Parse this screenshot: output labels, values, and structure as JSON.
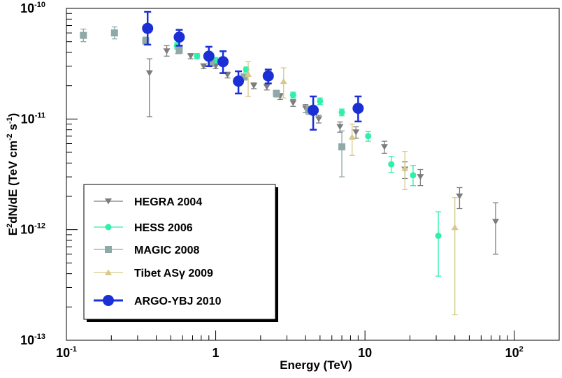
{
  "chart_data": {
    "type": "scatter",
    "title": "",
    "xlabel": "Energy (TeV)",
    "ylabel_parts": [
      "E",
      "2",
      "dN/dE (TeV cm",
      "-2",
      " s",
      "-1",
      ")"
    ],
    "x_scale": "log",
    "y_scale": "log",
    "xlim": [
      0.1,
      200
    ],
    "ylim": [
      1e-13,
      1e-10
    ],
    "grid": false,
    "legend_position": "bottom-left",
    "x_tick_labels": [
      {
        "value": 0.1,
        "base": "10",
        "exp": "-1"
      },
      {
        "value": 1,
        "base": "1",
        "exp": ""
      },
      {
        "value": 10,
        "base": "10",
        "exp": ""
      },
      {
        "value": 100,
        "base": "10",
        "exp": "2"
      }
    ],
    "y_tick_labels": [
      {
        "value": 1e-13,
        "base": "10",
        "exp": "-13"
      },
      {
        "value": 1e-12,
        "base": "10",
        "exp": "-12"
      },
      {
        "value": 1e-11,
        "base": "10",
        "exp": "-11"
      },
      {
        "value": 1e-10,
        "base": "10",
        "exp": "-10"
      }
    ],
    "series": [
      {
        "name": "HEGRA 2004",
        "marker": "triangle-down",
        "color": "#7d7d7d",
        "points": [
          {
            "x": 0.36,
            "y": 2.6e-11,
            "lo": 1.05e-11,
            "hi": 3.5e-11
          },
          {
            "x": 0.47,
            "y": 4.1e-11,
            "lo": 3.7e-11,
            "hi": 4.6e-11
          },
          {
            "x": 0.56,
            "y": 4.2e-11,
            "lo": 3.9e-11,
            "hi": 4.5e-11
          },
          {
            "x": 0.68,
            "y": 3.7e-11,
            "lo": 3.5e-11,
            "hi": 3.9e-11
          },
          {
            "x": 0.83,
            "y": 3e-11,
            "lo": 2.85e-11,
            "hi": 3.15e-11
          },
          {
            "x": 1.0,
            "y": 3e-11,
            "lo": 2.85e-11,
            "hi": 3.15e-11
          },
          {
            "x": 1.2,
            "y": 2.5e-11,
            "lo": 2.35e-11,
            "hi": 2.65e-11
          },
          {
            "x": 1.47,
            "y": 2.3e-11,
            "lo": 2.15e-11,
            "hi": 2.45e-11
          },
          {
            "x": 1.8,
            "y": 2e-11,
            "lo": 1.88e-11,
            "hi": 2.12e-11
          },
          {
            "x": 2.2,
            "y": 1.95e-11,
            "lo": 1.83e-11,
            "hi": 2.07e-11
          },
          {
            "x": 2.7,
            "y": 1.6e-11,
            "lo": 1.5e-11,
            "hi": 1.7e-11
          },
          {
            "x": 3.3,
            "y": 1.4e-11,
            "lo": 1.3e-11,
            "hi": 1.5e-11
          },
          {
            "x": 4.0,
            "y": 1.25e-11,
            "lo": 1.15e-11,
            "hi": 1.35e-11
          },
          {
            "x": 4.9,
            "y": 1e-11,
            "lo": 9.2e-12,
            "hi": 1.08e-11
          },
          {
            "x": 6.8,
            "y": 8.5e-12,
            "lo": 7.6e-12,
            "hi": 9.4e-12
          },
          {
            "x": 8.7,
            "y": 7.6e-12,
            "lo": 6.7e-12,
            "hi": 8.5e-12
          },
          {
            "x": 13.5,
            "y": 5.6e-12,
            "lo": 4.9e-12,
            "hi": 6.3e-12
          },
          {
            "x": 18.5,
            "y": 3.5e-12,
            "lo": 2.9e-12,
            "hi": 4.1e-12
          },
          {
            "x": 23.5,
            "y": 3e-12,
            "lo": 2.5e-12,
            "hi": 3.5e-12
          },
          {
            "x": 43,
            "y": 2e-12,
            "lo": 1.55e-12,
            "hi": 2.4e-12
          },
          {
            "x": 75,
            "y": 1.18e-12,
            "lo": 6e-13,
            "hi": 1.75e-12
          }
        ]
      },
      {
        "name": "HESS 2006",
        "marker": "circle-small",
        "color": "#2ef0a8",
        "points": [
          {
            "x": 0.55,
            "y": 4.6e-11,
            "lo": 4.3e-11,
            "hi": 4.9e-11
          },
          {
            "x": 0.75,
            "y": 3.7e-11,
            "lo": 3.5e-11,
            "hi": 3.9e-11
          },
          {
            "x": 1.0,
            "y": 3.4e-11,
            "lo": 3.2e-11,
            "hi": 3.6e-11
          },
          {
            "x": 1.6,
            "y": 2.8e-11,
            "lo": 2.65e-11,
            "hi": 2.95e-11
          },
          {
            "x": 3.3,
            "y": 1.65e-11,
            "lo": 1.55e-11,
            "hi": 1.75e-11
          },
          {
            "x": 5.0,
            "y": 1.45e-11,
            "lo": 1.35e-11,
            "hi": 1.55e-11
          },
          {
            "x": 7.0,
            "y": 1.15e-11,
            "lo": 1.07e-11,
            "hi": 1.23e-11
          },
          {
            "x": 10.5,
            "y": 7e-12,
            "lo": 6.3e-12,
            "hi": 7.7e-12
          },
          {
            "x": 15.0,
            "y": 3.9e-12,
            "lo": 3.3e-12,
            "hi": 4.6e-12
          },
          {
            "x": 21,
            "y": 3.1e-12,
            "lo": 2.5e-12,
            "hi": 3.8e-12
          },
          {
            "x": 31,
            "y": 8.8e-13,
            "lo": 3.8e-13,
            "hi": 1.45e-12
          }
        ]
      },
      {
        "name": "MAGIC 2008",
        "marker": "square",
        "color": "#8fa8a8",
        "points": [
          {
            "x": 0.13,
            "y": 5.7e-11,
            "lo": 5e-11,
            "hi": 6.5e-11
          },
          {
            "x": 0.21,
            "y": 6e-11,
            "lo": 5.3e-11,
            "hi": 6.8e-11
          },
          {
            "x": 0.34,
            "y": 5.1e-11,
            "lo": 4.7e-11,
            "hi": 5.5e-11
          },
          {
            "x": 0.57,
            "y": 4.2e-11,
            "lo": 3.9e-11,
            "hi": 4.5e-11
          },
          {
            "x": 0.93,
            "y": 3.2e-11,
            "lo": 3e-11,
            "hi": 3.4e-11
          },
          {
            "x": 1.55,
            "y": 2.4e-11,
            "lo": 2.25e-11,
            "hi": 2.55e-11
          },
          {
            "x": 2.55,
            "y": 1.7e-11,
            "lo": 1.58e-11,
            "hi": 1.82e-11
          },
          {
            "x": 4.2,
            "y": 1.2e-11,
            "lo": 1.1e-11,
            "hi": 1.3e-11
          },
          {
            "x": 7.0,
            "y": 5.6e-12,
            "lo": 3e-12,
            "hi": 7.8e-12
          }
        ]
      },
      {
        "name": "Tibet ASγ 2009",
        "marker": "triangle-up",
        "color": "#d8c98a",
        "points": [
          {
            "x": 1.65,
            "y": 2.55e-11,
            "lo": 1.6e-11,
            "hi": 3.3e-11
          },
          {
            "x": 2.85,
            "y": 2.2e-11,
            "lo": 1.55e-11,
            "hi": 2.9e-11
          },
          {
            "x": 8.2,
            "y": 6.9e-12,
            "lo": 4.7e-12,
            "hi": 9e-12
          },
          {
            "x": 18.5,
            "y": 3.6e-12,
            "lo": 2.3e-12,
            "hi": 5.1e-12
          },
          {
            "x": 40,
            "y": 1.05e-12,
            "lo": 1.7e-13,
            "hi": 1.95e-12
          }
        ]
      },
      {
        "name": "ARGO-YBJ 2010",
        "marker": "circle-large",
        "color": "#1b2fd6",
        "points": [
          {
            "x": 0.35,
            "y": 6.6e-11,
            "lo": 4.7e-11,
            "hi": 9.3e-11
          },
          {
            "x": 0.57,
            "y": 5.5e-11,
            "lo": 4.6e-11,
            "hi": 6.4e-11
          },
          {
            "x": 0.9,
            "y": 3.7e-11,
            "lo": 3e-11,
            "hi": 4.5e-11
          },
          {
            "x": 1.12,
            "y": 3.3e-11,
            "lo": 2.6e-11,
            "hi": 4.1e-11
          },
          {
            "x": 1.42,
            "y": 2.2e-11,
            "lo": 1.7e-11,
            "hi": 2.7e-11
          },
          {
            "x": 2.25,
            "y": 2.45e-11,
            "lo": 2.1e-11,
            "hi": 2.8e-11
          },
          {
            "x": 4.5,
            "y": 1.2e-11,
            "lo": 8e-12,
            "hi": 1.6e-11
          },
          {
            "x": 9.0,
            "y": 1.25e-11,
            "lo": 9.5e-12,
            "hi": 1.6e-11
          }
        ]
      }
    ]
  }
}
